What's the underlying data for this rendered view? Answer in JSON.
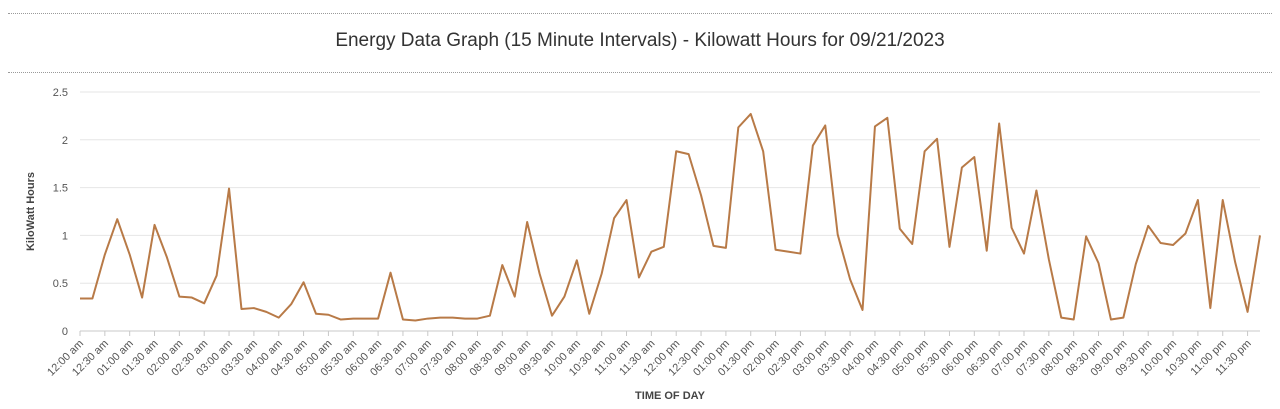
{
  "chart_data": {
    "type": "line",
    "title": "Energy Data Graph (15 Minute Intervals) - Kilowatt Hours for 09/21/2023",
    "xlabel": "TIME OF DAY",
    "ylabel": "KiloWatt Hours",
    "ylim": [
      0,
      2.5
    ],
    "yticks": [
      "0",
      "0.5",
      "1",
      "1.5",
      "2",
      "2.5"
    ],
    "grid": true,
    "line_color": "#b87a47",
    "xtick_labels": [
      "12:00 am",
      "12:30 am",
      "01:00 am",
      "01:30 am",
      "02:00 am",
      "02:30 am",
      "03:00 am",
      "03:30 am",
      "04:00 am",
      "04:30 am",
      "05:00 am",
      "05:30 am",
      "06:00 am",
      "06:30 am",
      "07:00 am",
      "07:30 am",
      "08:00 am",
      "08:30 am",
      "09:00 am",
      "09:30 am",
      "10:00 am",
      "10:30 am",
      "11:00 am",
      "11:30 am",
      "12:00 pm",
      "12:30 pm",
      "01:00 pm",
      "01:30 pm",
      "02:00 pm",
      "02:30 pm",
      "03:00 pm",
      "03:30 pm",
      "04:00 pm",
      "04:30 pm",
      "05:00 pm",
      "05:30 pm",
      "06:00 pm",
      "06:30 pm",
      "07:00 pm",
      "07:30 pm",
      "08:00 pm",
      "08:30 pm",
      "09:00 pm",
      "09:30 pm",
      "10:00 pm",
      "10:30 pm",
      "11:00 pm",
      "11:30 pm"
    ],
    "series": [
      {
        "values": [
          0.34,
          0.34,
          0.8,
          1.17,
          0.8,
          0.35,
          1.11,
          0.77,
          0.36,
          0.35,
          0.29,
          0.58,
          1.49,
          0.23,
          0.24,
          0.2,
          0.14,
          0.28,
          0.51,
          0.18,
          0.17,
          0.12,
          0.13,
          0.13,
          0.13,
          0.61,
          0.12,
          0.11,
          0.13,
          0.14,
          0.14,
          0.13,
          0.13,
          0.16,
          0.69,
          0.36,
          1.14,
          0.6,
          0.16,
          0.36,
          0.74,
          0.18,
          0.6,
          1.18,
          1.37,
          0.56,
          0.83,
          0.88,
          1.88,
          1.85,
          1.42,
          0.89,
          0.87,
          2.13,
          2.27,
          1.88,
          0.85,
          0.83,
          0.81,
          1.94,
          2.15,
          1.01,
          0.54,
          0.22,
          2.14,
          2.23,
          1.07,
          0.91,
          1.88,
          2.01,
          0.88,
          1.71,
          1.82,
          0.84,
          2.17,
          1.08,
          0.81,
          1.47,
          0.75,
          0.14,
          0.12,
          0.99,
          0.71,
          0.12,
          0.14,
          0.7,
          1.1,
          0.92,
          0.9,
          1.02,
          1.37,
          0.24,
          1.37,
          0.72,
          0.2,
          1.0
        ]
      }
    ]
  }
}
